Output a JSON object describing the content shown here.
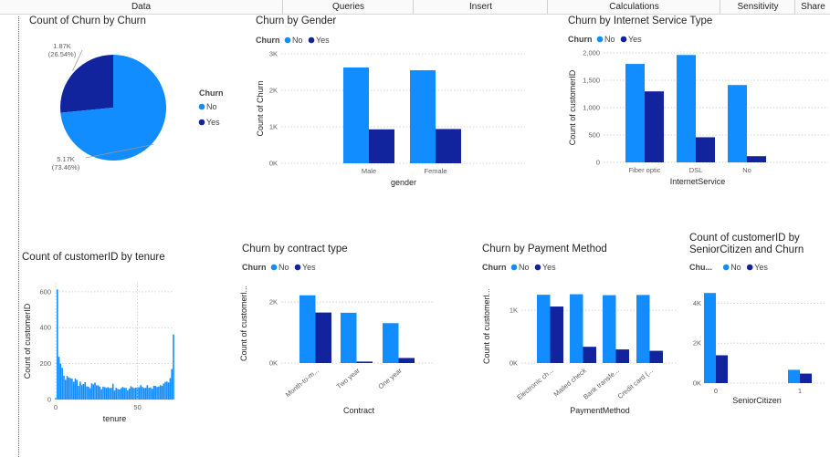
{
  "ribbon": {
    "tabs": [
      "Data",
      "Queries",
      "Insert",
      "Calculations",
      "Sensitivity",
      "Share"
    ]
  },
  "colors": {
    "no": "#118dff",
    "yes": "#12239e"
  },
  "chart_data": [
    {
      "id": "pie",
      "type": "pie",
      "title": "Count of Churn by Churn",
      "legend_title": "Churn",
      "legend_placement": "right",
      "slices": [
        {
          "name": "No",
          "value": 5170,
          "label": "5.17K",
          "pct": "(73.46%)"
        },
        {
          "name": "Yes",
          "value": 1870,
          "label": "1.87K",
          "pct": "(26.54%)"
        }
      ]
    },
    {
      "id": "gender",
      "type": "bar",
      "title": "Churn by Gender",
      "legend_title": "Churn",
      "legend_placement": "top-left",
      "categories": [
        "Male",
        "Female"
      ],
      "series": [
        {
          "name": "No",
          "values": [
            2625,
            2549
          ]
        },
        {
          "name": "Yes",
          "values": [
            930,
            939
          ]
        }
      ],
      "xlabel": "gender",
      "ylabel": "Count of Churn",
      "ylim": [
        0,
        3000
      ],
      "yticks": [
        0,
        1000,
        2000,
        3000
      ],
      "ytick_labels": [
        "0K",
        "1K",
        "2K",
        "3K"
      ]
    },
    {
      "id": "internet",
      "type": "bar",
      "title": "Churn by Internet Service Type",
      "legend_title": "Churn",
      "legend_placement": "top-left",
      "categories": [
        "Fiber optic",
        "DSL",
        "No"
      ],
      "series": [
        {
          "name": "No",
          "values": [
            1799,
            1962,
            1413
          ]
        },
        {
          "name": "Yes",
          "values": [
            1297,
            459,
            113
          ]
        }
      ],
      "xlabel": "InternetService",
      "ylabel": "Count of customerID",
      "ylim": [
        0,
        2000
      ],
      "yticks": [
        0,
        500,
        1000,
        1500,
        2000
      ],
      "ytick_labels": [
        "0",
        "500",
        "1,000",
        "1,500",
        "2,000"
      ]
    },
    {
      "id": "tenure",
      "type": "bar",
      "title": "Count of customerID by tenure",
      "x": [
        0,
        1,
        2,
        3,
        4,
        5,
        6,
        7,
        8,
        9,
        10,
        11,
        12,
        13,
        14,
        15,
        16,
        17,
        18,
        19,
        20,
        21,
        22,
        23,
        24,
        25,
        26,
        27,
        28,
        29,
        30,
        31,
        32,
        33,
        34,
        35,
        36,
        37,
        38,
        39,
        40,
        41,
        42,
        43,
        44,
        45,
        46,
        47,
        48,
        49,
        50,
        51,
        52,
        53,
        54,
        55,
        56,
        57,
        58,
        59,
        60,
        61,
        62,
        63,
        64,
        65,
        66,
        67,
        68,
        69,
        70,
        71,
        72
      ],
      "values": [
        11,
        613,
        238,
        200,
        176,
        133,
        110,
        131,
        123,
        119,
        116,
        99,
        117,
        109,
        76,
        99,
        80,
        87,
        97,
        73,
        71,
        63,
        90,
        85,
        94,
        79,
        79,
        72,
        57,
        72,
        69,
        65,
        69,
        64,
        65,
        88,
        50,
        65,
        59,
        56,
        64,
        70,
        65,
        65,
        51,
        61,
        74,
        68,
        64,
        66,
        68,
        68,
        80,
        70,
        64,
        65,
        80,
        65,
        67,
        60,
        76,
        76,
        70,
        72,
        80,
        76,
        89,
        98,
        100,
        95,
        119,
        170,
        362
      ],
      "xlabel": "tenure",
      "ylabel": "Count of customerID",
      "ylim": [
        0,
        650
      ],
      "yticks": [
        0,
        200,
        400,
        600
      ],
      "ytick_labels": [
        "0",
        "200",
        "400",
        "600"
      ],
      "xticks": [
        0,
        50
      ],
      "xtick_labels": [
        "0",
        "50"
      ]
    },
    {
      "id": "contract",
      "type": "bar",
      "title": "Churn by contract type",
      "legend_title": "Churn",
      "legend_placement": "top-left",
      "categories": [
        "Month-to-m...",
        "Two year",
        "One year"
      ],
      "series": [
        {
          "name": "No",
          "values": [
            2220,
            1647,
            1307
          ]
        },
        {
          "name": "Yes",
          "values": [
            1655,
            48,
            166
          ]
        }
      ],
      "xlabel": "Contract",
      "ylabel": "Count of customerl...",
      "ylim": [
        0,
        2600
      ],
      "yticks": [
        0,
        2000
      ],
      "ytick_labels": [
        "0K",
        "2K"
      ]
    },
    {
      "id": "payment",
      "type": "bar",
      "title": "Churn by Payment Method",
      "legend_title": "Churn",
      "legend_placement": "top-left",
      "categories": [
        "Electronic ch...",
        "Mailed check",
        "Bank transfe...",
        "Credit card (..."
      ],
      "series": [
        {
          "name": "No",
          "values": [
            1294,
            1304,
            1286,
            1290
          ]
        },
        {
          "name": "Yes",
          "values": [
            1071,
            308,
            258,
            232
          ]
        }
      ],
      "xlabel": "PaymentMethod",
      "ylabel": "Count of customerl...",
      "ylim": [
        0,
        1400
      ],
      "yticks": [
        0,
        1000
      ],
      "ytick_labels": [
        "0K",
        "1K"
      ]
    },
    {
      "id": "senior",
      "type": "bar",
      "title": "Count of customerID by",
      "subtitle": "SeniorCitizen and Churn",
      "legend_title": "Chu...",
      "legend_placement": "top-left",
      "x": [
        0,
        1
      ],
      "series": [
        {
          "name": "No",
          "values": [
            4508,
            666
          ]
        },
        {
          "name": "Yes",
          "values": [
            1393,
            476
          ]
        }
      ],
      "xlabel": "SeniorCitizen",
      "ylabel": "",
      "ylim": [
        0,
        4700
      ],
      "yticks": [
        0,
        2000,
        4000
      ],
      "ytick_labels": [
        "0K",
        "2K",
        "4K"
      ],
      "xticks": [
        0,
        1
      ],
      "xtick_labels": [
        "0",
        "1"
      ]
    }
  ]
}
